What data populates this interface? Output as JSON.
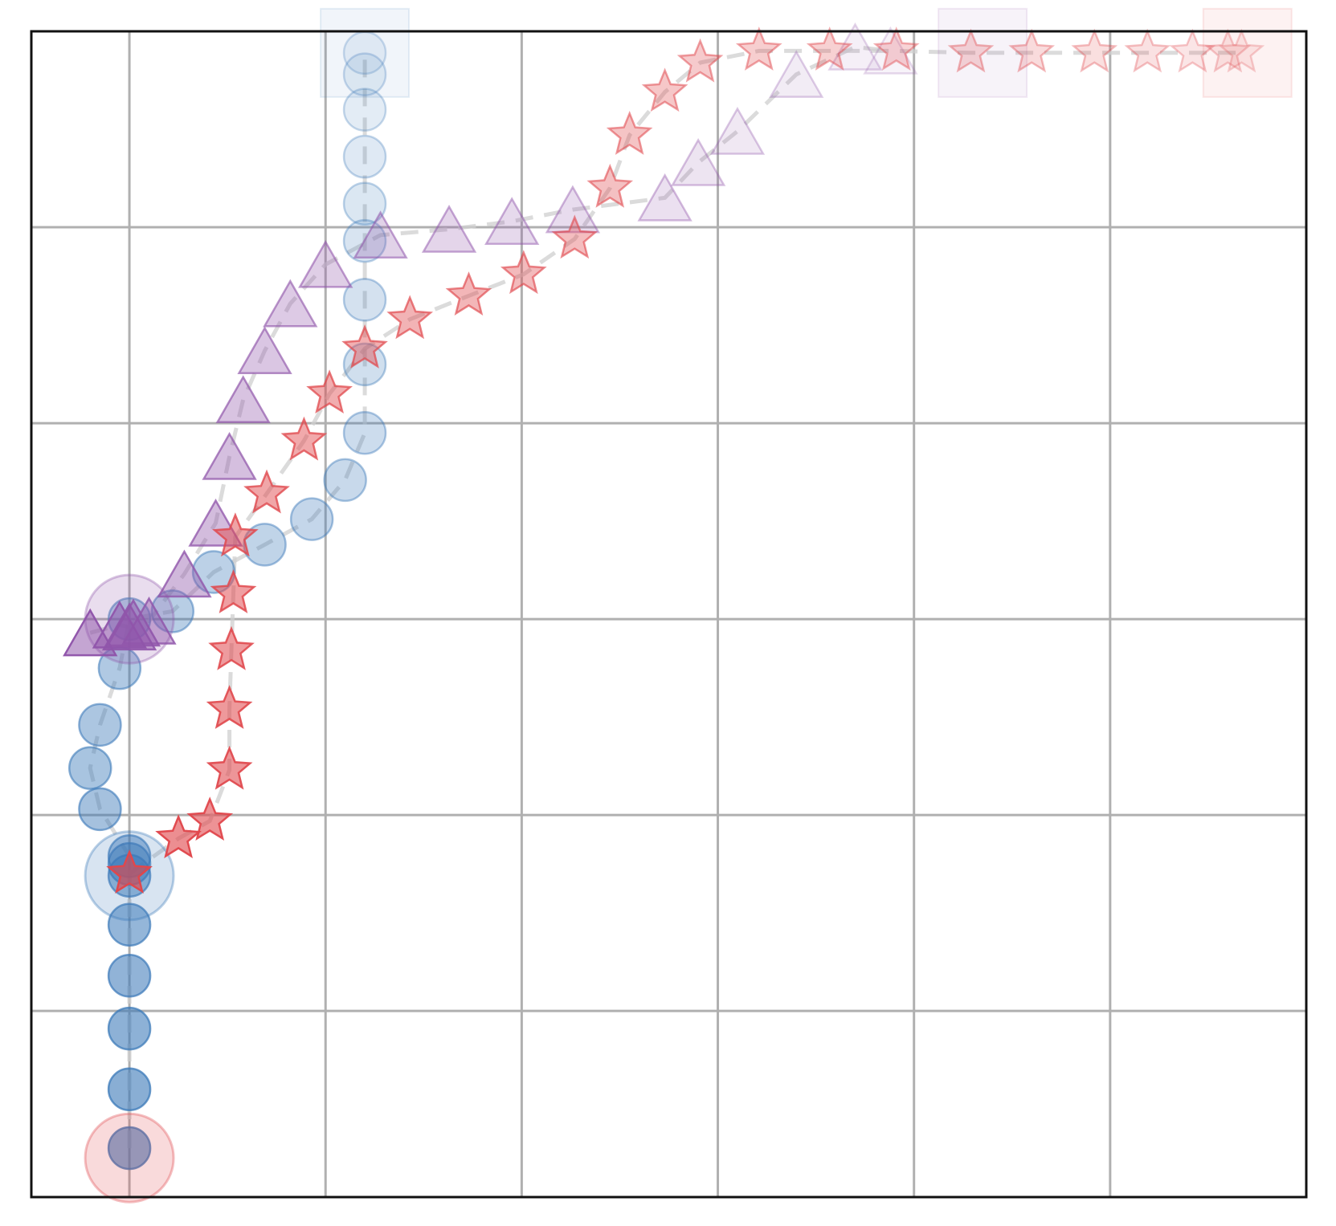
{
  "chart_data": {
    "type": "scatter",
    "title": "",
    "xlabel": "",
    "ylabel": "",
    "xlim": [
      -0.5,
      6.0
    ],
    "ylim": [
      -0.95,
      5.0
    ],
    "grid": true,
    "grid_x": [
      0,
      1,
      2,
      3,
      4,
      5
    ],
    "grid_y": [
      0,
      1,
      2,
      3,
      4
    ],
    "tick_labels_shown": false,
    "legend": "none",
    "series": [
      {
        "marker": "circle",
        "color": "#3a78b8",
        "points": [
          [
            0.0,
            -0.7
          ],
          [
            0.0,
            -0.4
          ],
          [
            0.0,
            -0.09
          ],
          [
            0.0,
            0.18
          ],
          [
            0.0,
            0.44
          ],
          [
            0.0,
            0.69
          ],
          [
            0.0,
            0.75
          ],
          [
            0.0,
            0.79
          ],
          [
            -0.15,
            1.03
          ],
          [
            -0.2,
            1.24
          ],
          [
            -0.15,
            1.46
          ],
          [
            -0.05,
            1.75
          ],
          [
            0.0,
            2.0
          ],
          [
            0.22,
            2.04
          ],
          [
            0.43,
            2.24
          ],
          [
            0.69,
            2.38
          ],
          [
            0.93,
            2.51
          ],
          [
            1.1,
            2.71
          ],
          [
            1.2,
            2.95
          ],
          [
            1.2,
            3.3
          ],
          [
            1.2,
            3.63
          ],
          [
            1.2,
            3.93
          ],
          [
            1.2,
            4.12
          ],
          [
            1.2,
            4.36
          ],
          [
            1.2,
            4.6
          ],
          [
            1.2,
            4.78
          ],
          [
            1.2,
            4.89
          ]
        ],
        "alpha_start": 0.62,
        "alpha_end": 0.1,
        "start_ring": [
          0.0,
          0.69
        ],
        "end_box": [
          1.2,
          4.89
        ]
      },
      {
        "marker": "triangle",
        "color": "#9055aa",
        "points": [
          [
            -0.2,
            1.93
          ],
          [
            -0.05,
            1.97
          ],
          [
            0.0,
            1.96
          ],
          [
            0.02,
            1.98
          ],
          [
            0.1,
            1.99
          ],
          [
            0.28,
            2.23
          ],
          [
            0.44,
            2.49
          ],
          [
            0.51,
            2.83
          ],
          [
            0.58,
            3.12
          ],
          [
            0.69,
            3.37
          ],
          [
            0.82,
            3.61
          ],
          [
            1.0,
            3.81
          ],
          [
            1.28,
            3.96
          ],
          [
            1.63,
            3.99
          ],
          [
            1.95,
            4.03
          ],
          [
            2.26,
            4.09
          ],
          [
            2.73,
            4.15
          ],
          [
            2.9,
            4.33
          ],
          [
            3.1,
            4.49
          ],
          [
            3.4,
            4.78
          ],
          [
            3.7,
            4.92
          ],
          [
            3.88,
            4.9
          ]
        ],
        "alpha_start": 0.88,
        "alpha_end": 0.12,
        "start_ring": [
          0.0,
          2.0
        ],
        "end_box": [
          4.35,
          4.89
        ]
      },
      {
        "marker": "star",
        "color": "#e0474c",
        "points": [
          [
            0.0,
            0.7
          ],
          [
            0.25,
            0.88
          ],
          [
            0.41,
            0.97
          ],
          [
            0.51,
            1.23
          ],
          [
            0.51,
            1.54
          ],
          [
            0.52,
            1.84
          ],
          [
            0.53,
            2.13
          ],
          [
            0.54,
            2.42
          ],
          [
            0.7,
            2.64
          ],
          [
            0.89,
            2.91
          ],
          [
            1.02,
            3.15
          ],
          [
            1.2,
            3.38
          ],
          [
            1.43,
            3.53
          ],
          [
            1.73,
            3.65
          ],
          [
            2.01,
            3.76
          ],
          [
            2.27,
            3.94
          ],
          [
            2.45,
            4.2
          ],
          [
            2.55,
            4.47
          ],
          [
            2.73,
            4.69
          ],
          [
            2.91,
            4.84
          ],
          [
            3.21,
            4.9
          ],
          [
            3.57,
            4.9
          ],
          [
            3.91,
            4.9
          ],
          [
            4.29,
            4.89
          ],
          [
            4.6,
            4.89
          ],
          [
            4.92,
            4.89
          ],
          [
            5.19,
            4.89
          ],
          [
            5.42,
            4.89
          ],
          [
            5.6,
            4.89
          ],
          [
            5.67,
            4.89
          ]
        ],
        "alpha_start": 0.9,
        "alpha_end": 0.15,
        "start_ring": [
          0.0,
          -0.75
        ],
        "end_box": [
          5.7,
          4.89
        ]
      }
    ]
  }
}
